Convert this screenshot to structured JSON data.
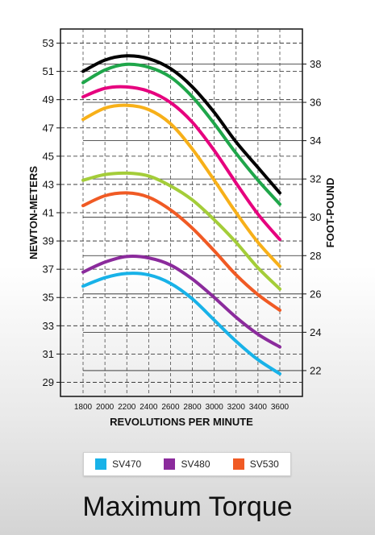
{
  "caption": "Maximum Torque",
  "legend": [
    {
      "label": "SV470",
      "color": "#18b2e8"
    },
    {
      "label": "SV480",
      "color": "#8b2b9c"
    },
    {
      "label": "SV530",
      "color": "#f05a24"
    }
  ],
  "chart_data": {
    "type": "line",
    "title": "Maximum Torque",
    "xlabel": "REVOLUTIONS PER MINUTE",
    "ylabel_left": "NEWTON-METERS",
    "ylabel_right": "FOOT-POUND",
    "x": [
      1800,
      2000,
      2200,
      2400,
      2600,
      2800,
      3000,
      3200,
      3400,
      3600
    ],
    "xlim": [
      1800,
      3600
    ],
    "ylim": [
      28,
      54
    ],
    "left_ticks": [
      29,
      31,
      33,
      35,
      37,
      39,
      41,
      43,
      45,
      47,
      49,
      51,
      53
    ],
    "right_ticks": [
      22,
      24,
      26,
      28,
      30,
      32,
      34,
      36,
      38
    ],
    "grid": true,
    "legend_position": "bottom",
    "series": [
      {
        "name": "",
        "color": "#000000",
        "values": [
          51.0,
          51.8,
          52.1,
          51.9,
          51.2,
          49.9,
          48.1,
          46.0,
          44.2,
          42.4
        ]
      },
      {
        "name": "",
        "color": "#1fa64a",
        "values": [
          50.2,
          51.1,
          51.5,
          51.3,
          50.6,
          49.2,
          47.3,
          45.2,
          43.3,
          41.6
        ]
      },
      {
        "name": "",
        "color": "#e6007e",
        "values": [
          49.2,
          49.8,
          49.9,
          49.6,
          48.8,
          47.4,
          45.4,
          43.1,
          40.9,
          39.1
        ]
      },
      {
        "name": "",
        "color": "#f7b019",
        "values": [
          47.6,
          48.4,
          48.6,
          48.3,
          47.3,
          45.5,
          43.3,
          41.0,
          38.9,
          37.2
        ]
      },
      {
        "name": "",
        "color": "#a4cd39",
        "values": [
          43.3,
          43.7,
          43.8,
          43.6,
          42.9,
          41.9,
          40.5,
          38.9,
          37.1,
          35.6
        ]
      },
      {
        "name": "",
        "color": "#f05a24",
        "values": [
          41.5,
          42.2,
          42.4,
          42.1,
          41.2,
          39.9,
          38.3,
          36.6,
          35.2,
          34.1
        ]
      },
      {
        "name": "SV480",
        "color": "#8b2b9c",
        "values": [
          36.8,
          37.5,
          37.9,
          37.8,
          37.3,
          36.3,
          35.0,
          33.6,
          32.4,
          31.5
        ]
      },
      {
        "name": "SV470",
        "color": "#18b2e8",
        "values": [
          35.8,
          36.4,
          36.7,
          36.6,
          36.0,
          34.9,
          33.4,
          31.9,
          30.6,
          29.6
        ]
      }
    ]
  }
}
